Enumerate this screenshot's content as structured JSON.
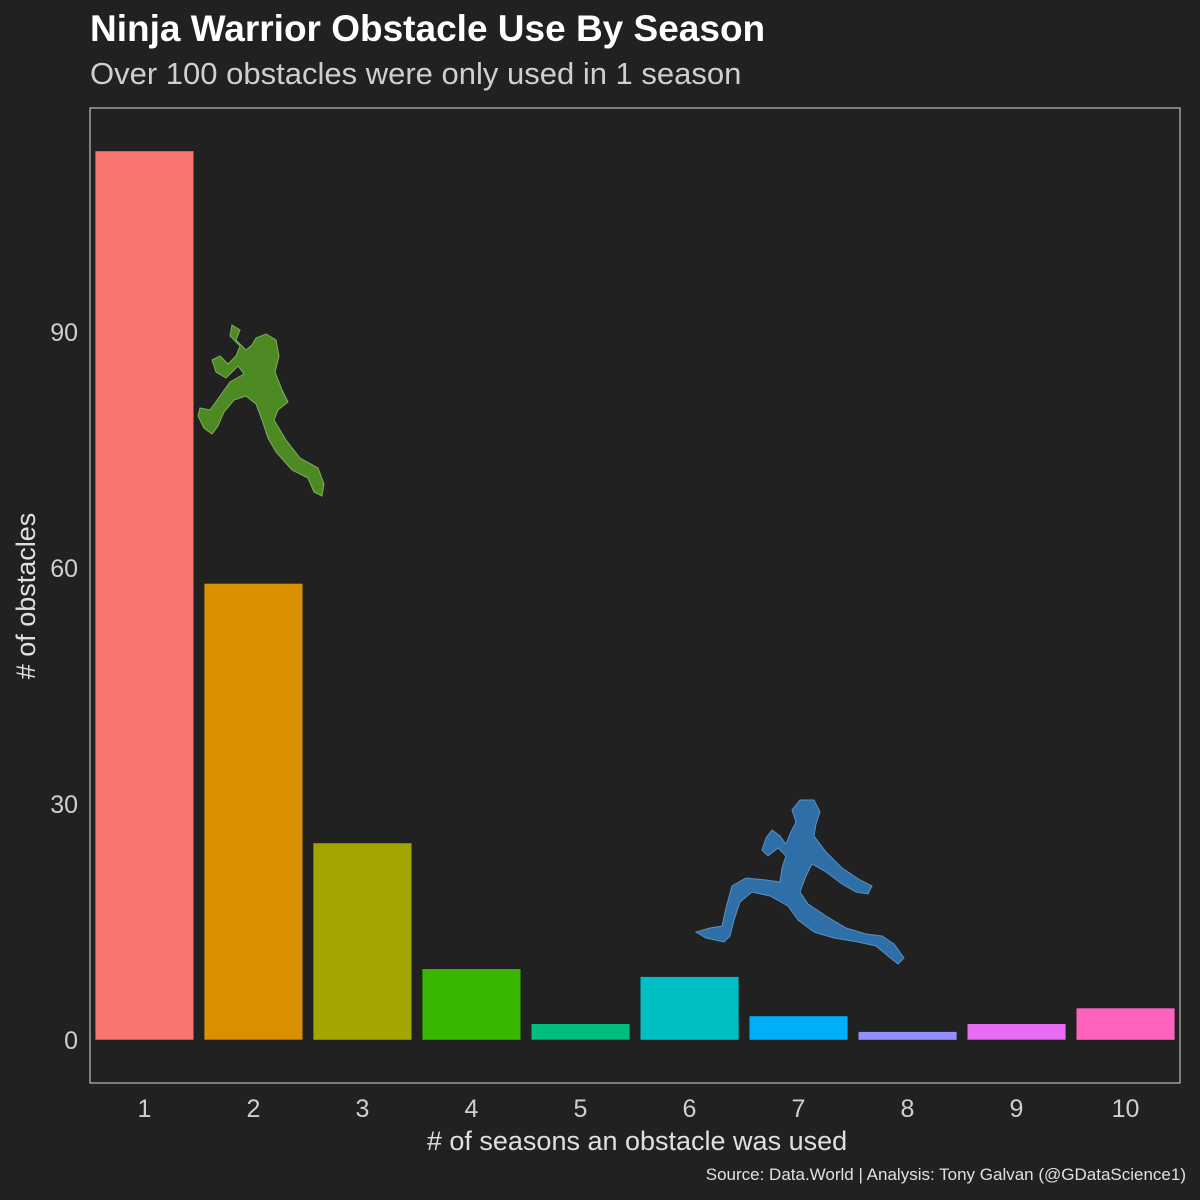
{
  "title": "Ninja Warrior Obstacle Use By Season",
  "subtitle": "Over 100 obstacles were only used in 1 season",
  "caption": "Source: Data.World  |  Analysis: Tony Galvan (@GDataScience1)",
  "colors": {
    "background": "#212121",
    "panel_border": "#bdbdbd",
    "green_figure": "#4e8a24",
    "blue_figure": "#2f6fa8"
  },
  "icons": [
    "climbing-ninja-silhouette",
    "running-ninja-silhouette"
  ],
  "chart_data": {
    "type": "bar",
    "xlabel": "# of seasons an obstacle was used",
    "ylabel": "# of obstacles",
    "categories": [
      "1",
      "2",
      "3",
      "4",
      "5",
      "6",
      "7",
      "8",
      "9",
      "10"
    ],
    "values": [
      113,
      58,
      25,
      9,
      2,
      8,
      3,
      1,
      2,
      4
    ],
    "colors": [
      "#F8766D",
      "#D89000",
      "#A3A500",
      "#39B600",
      "#00BF7D",
      "#00BFC4",
      "#00B0F6",
      "#9590FF",
      "#E76BF3",
      "#FF62BC"
    ],
    "yticks": [
      0,
      30,
      60,
      90
    ],
    "ylim": [
      -5.5,
      118.5
    ],
    "grid": false,
    "legend": "none"
  }
}
